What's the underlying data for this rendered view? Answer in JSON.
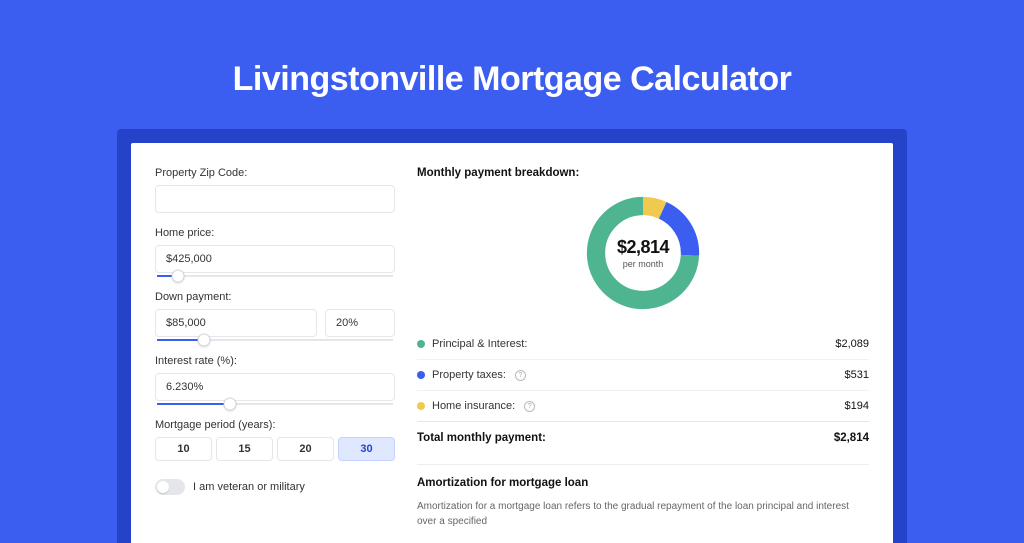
{
  "hero": {
    "title": "Livingstonville Mortgage Calculator"
  },
  "colors": {
    "page_bg": "#3b5ef0",
    "frame_bg": "#2543c9",
    "principal": "#4fb490",
    "taxes": "#3b5ef0",
    "insurance": "#f0c94f",
    "donut_track": "#eeeeee"
  },
  "form": {
    "zip": {
      "label": "Property Zip Code:",
      "value": ""
    },
    "home_price": {
      "label": "Home price:",
      "value": "$425,000",
      "slider_pct": 9
    },
    "down_payment": {
      "label": "Down payment:",
      "value": "$85,000",
      "pct": "20%",
      "slider_pct": 20
    },
    "rate": {
      "label": "Interest rate (%):",
      "value": "6.230%",
      "slider_pct": 31
    },
    "period": {
      "label": "Mortgage period (years):",
      "options": [
        "10",
        "15",
        "20",
        "30"
      ],
      "selected": "30"
    },
    "veteran": {
      "label": "I am veteran or military",
      "on": false
    }
  },
  "breakdown": {
    "title": "Monthly payment breakdown:",
    "donut": {
      "amount": "$2,814",
      "sub": "per month",
      "slices": [
        {
          "key": "insurance",
          "value": 194
        },
        {
          "key": "taxes",
          "value": 531
        },
        {
          "key": "principal",
          "value": 2089
        }
      ]
    },
    "legend": [
      {
        "key": "principal",
        "name": "Principal & Interest:",
        "value": "$2,089",
        "info": false
      },
      {
        "key": "taxes",
        "name": "Property taxes:",
        "value": "$531",
        "info": true
      },
      {
        "key": "insurance",
        "name": "Home insurance:",
        "value": "$194",
        "info": true
      }
    ],
    "total": {
      "label": "Total monthly payment:",
      "value": "$2,814"
    }
  },
  "amort": {
    "title": "Amortization for mortgage loan",
    "body": "Amortization for a mortgage loan refers to the gradual repayment of the loan principal and interest over a specified"
  }
}
